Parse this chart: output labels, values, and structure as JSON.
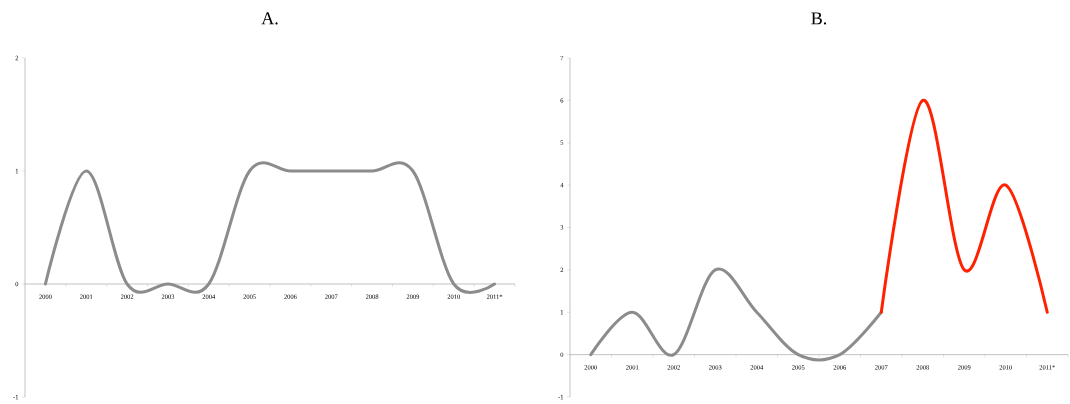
{
  "chart_data": [
    {
      "type": "line",
      "title": "A.",
      "categories": [
        "2000",
        "2001",
        "2002",
        "2003",
        "2004",
        "2005",
        "2006",
        "2007",
        "2008",
        "2009",
        "2010",
        "2011*"
      ],
      "series": [
        {
          "color": "#8c8c8c",
          "values": [
            0,
            1,
            0,
            0,
            0,
            1,
            1,
            1,
            1,
            1,
            0,
            0
          ]
        }
      ],
      "ylim": [
        -1,
        2
      ],
      "yticks": [
        -1,
        0,
        1,
        2
      ]
    },
    {
      "type": "line",
      "title": "B.",
      "categories": [
        "2000",
        "2001",
        "2002",
        "2003",
        "2004",
        "2005",
        "2006",
        "2007",
        "2008",
        "2009",
        "2010",
        "2011*"
      ],
      "series": [
        {
          "color": "#8c8c8c",
          "values": [
            0,
            1,
            0,
            2,
            1,
            0,
            0,
            1,
            null,
            null,
            null,
            null
          ]
        },
        {
          "color": "#ff2200",
          "values": [
            null,
            null,
            null,
            null,
            null,
            null,
            null,
            1,
            6,
            2,
            4,
            1
          ]
        }
      ],
      "ylim": [
        -1,
        7
      ],
      "yticks": [
        -1,
        0,
        1,
        2,
        3,
        4,
        5,
        6,
        7
      ]
    }
  ]
}
